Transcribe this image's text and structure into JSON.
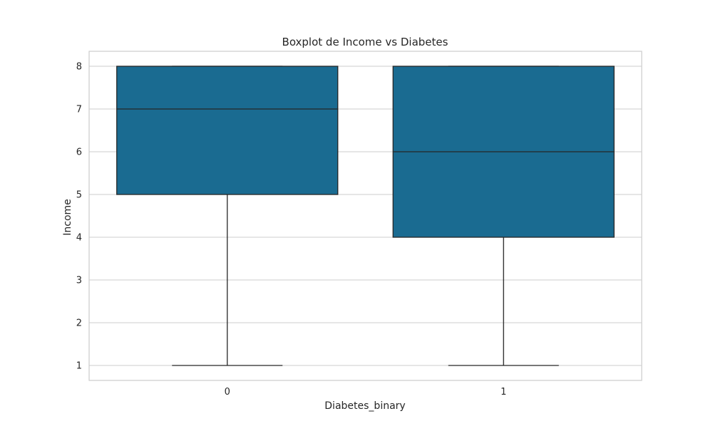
{
  "chart_data": {
    "type": "boxplot",
    "title": "Boxplot de Income vs Diabetes",
    "xlabel": "Diabetes_binary",
    "ylabel": "Income",
    "categories": [
      "0",
      "1"
    ],
    "boxes": [
      {
        "category": "0",
        "whisker_low": 1,
        "q1": 5,
        "median": 7,
        "q3": 8,
        "whisker_high": 8
      },
      {
        "category": "1",
        "whisker_low": 1,
        "q1": 4,
        "median": 6,
        "q3": 8,
        "whisker_high": 8
      }
    ],
    "yticks": [
      1,
      2,
      3,
      4,
      5,
      6,
      7,
      8
    ],
    "ylim": [
      0.65,
      8.35
    ],
    "grid": true,
    "colors": {
      "box": "#1a6b91",
      "line": "#262626",
      "grid": "#cccccc",
      "frame": "#cccccc"
    }
  }
}
